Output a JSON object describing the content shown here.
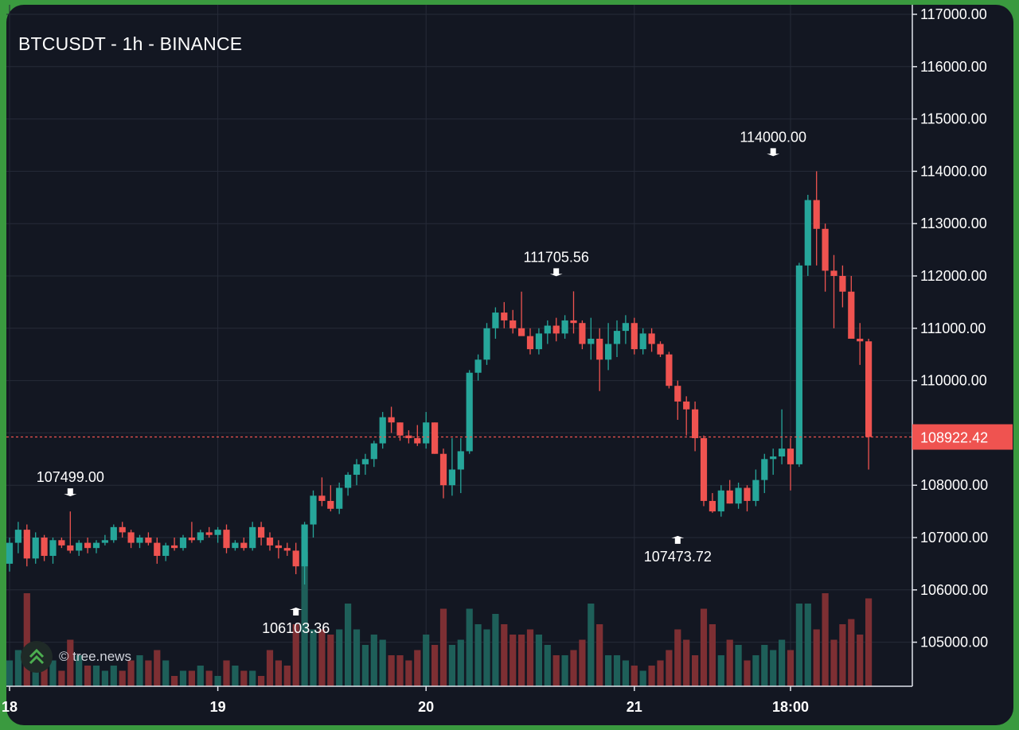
{
  "header": {
    "title": "BTCUSDT - 1h - BINANCE"
  },
  "watermark": {
    "text": "© tree.news",
    "icon": "double-chevron-up-icon"
  },
  "colors": {
    "background": "#131722",
    "grid": "#262b38",
    "up": "#26a69a",
    "down": "#ef5350",
    "up_volume": "#1e5f59",
    "down_volume": "#7d2f33",
    "axis_text": "#ffffff"
  },
  "chart_data": {
    "type": "candlestick",
    "title": "BTCUSDT - 1h - BINANCE",
    "y_axis": {
      "side": "right",
      "range": [
        104300,
        117000
      ],
      "ticks": [
        117000,
        116000,
        115000,
        114000,
        113000,
        112000,
        111000,
        110000,
        108000,
        107000,
        106000,
        105000
      ],
      "tick_labels": [
        "117000.00",
        "116000.00",
        "115000.00",
        "114000.00",
        "113000.00",
        "112000.00",
        "111000.00",
        "110000.00",
        "108000.00",
        "107000.00",
        "106000.00",
        "105000.00"
      ]
    },
    "x_axis": {
      "ticks": [
        0,
        24,
        48,
        72,
        90
      ],
      "tick_labels": [
        "18",
        "19",
        "20",
        "21",
        "18:00"
      ]
    },
    "grid": true,
    "current_price": {
      "value": 108922.42,
      "label": "108922.42"
    },
    "annotations": [
      {
        "type": "high",
        "index": 7,
        "value": 107499.0,
        "label": "107499.00"
      },
      {
        "type": "low",
        "index": 33,
        "value": 106103.36,
        "label": "106103.36"
      },
      {
        "type": "high",
        "index": 63,
        "value": 111705.56,
        "label": "111705.56"
      },
      {
        "type": "low",
        "index": 77,
        "value": 107473.72,
        "label": "107473.72"
      },
      {
        "type": "high",
        "index": 88,
        "value": 114000.0,
        "label": "114000.00"
      }
    ],
    "candles": [
      [
        106500,
        107000,
        106350,
        106900,
        0.25
      ],
      [
        106900,
        107300,
        106700,
        107150,
        0.35
      ],
      [
        107150,
        107250,
        106450,
        106600,
        0.9
      ],
      [
        106600,
        107100,
        106500,
        107000,
        0.4
      ],
      [
        107000,
        107050,
        106550,
        106650,
        0.3
      ],
      [
        106650,
        107000,
        106500,
        106950,
        0.25
      ],
      [
        106950,
        107000,
        106800,
        106850,
        0.15
      ],
      [
        106850,
        107499,
        106700,
        106750,
        0.45
      ],
      [
        106750,
        106950,
        106650,
        106900,
        0.3
      ],
      [
        106900,
        107000,
        106700,
        106800,
        0.2
      ],
      [
        106800,
        106950,
        106700,
        106900,
        0.2
      ],
      [
        106900,
        107050,
        106850,
        106950,
        0.15
      ],
      [
        106950,
        107250,
        106900,
        107200,
        0.2
      ],
      [
        107200,
        107300,
        107000,
        107100,
        0.15
      ],
      [
        107100,
        107150,
        106800,
        106900,
        0.25
      ],
      [
        106900,
        107050,
        106800,
        107000,
        0.3
      ],
      [
        107000,
        107100,
        106850,
        106900,
        0.25
      ],
      [
        106900,
        107000,
        106500,
        106650,
        0.35
      ],
      [
        106650,
        106900,
        106550,
        106850,
        0.25
      ],
      [
        106850,
        107000,
        106750,
        106800,
        0.1
      ],
      [
        106800,
        107050,
        106750,
        107000,
        0.15
      ],
      [
        107000,
        107300,
        106900,
        106950,
        0.15
      ],
      [
        106950,
        107150,
        106900,
        107100,
        0.2
      ],
      [
        107100,
        107200,
        107000,
        107050,
        0.15
      ],
      [
        107050,
        107200,
        106900,
        107150,
        0.1
      ],
      [
        107150,
        107250,
        106700,
        106800,
        0.25
      ],
      [
        106800,
        106950,
        106750,
        106900,
        0.2
      ],
      [
        106900,
        107000,
        106750,
        106800,
        0.15
      ],
      [
        106800,
        107300,
        106750,
        107200,
        0.15
      ],
      [
        107200,
        107300,
        106850,
        107000,
        0.1
      ],
      [
        107000,
        107100,
        106750,
        106850,
        0.35
      ],
      [
        106850,
        106950,
        106600,
        106800,
        0.25
      ],
      [
        106800,
        106900,
        106650,
        106750,
        0.2
      ],
      [
        106750,
        106900,
        106300,
        106450,
        0.6
      ],
      [
        106450,
        107300,
        106103.36,
        107250,
        1.3
      ],
      [
        107250,
        107900,
        107000,
        107800,
        0.55
      ],
      [
        107800,
        108150,
        107600,
        107700,
        0.55
      ],
      [
        107700,
        108000,
        107500,
        107550,
        0.5
      ],
      [
        107550,
        108050,
        107450,
        107950,
        0.55
      ],
      [
        107950,
        108250,
        107800,
        108200,
        0.8
      ],
      [
        108200,
        108500,
        108000,
        108400,
        0.55
      ],
      [
        108400,
        108600,
        108200,
        108500,
        0.4
      ],
      [
        108500,
        108850,
        108350,
        108800,
        0.5
      ],
      [
        108800,
        109400,
        108700,
        109300,
        0.45
      ],
      [
        109300,
        109500,
        109000,
        109200,
        0.3
      ],
      [
        109200,
        109200,
        108850,
        108950,
        0.3
      ],
      [
        108950,
        109050,
        108800,
        108900,
        0.25
      ],
      [
        108900,
        109150,
        108750,
        108800,
        0.35
      ],
      [
        108800,
        109400,
        108700,
        109200,
        0.5
      ],
      [
        109200,
        109200,
        108600,
        108600,
        0.4
      ],
      [
        108600,
        108700,
        107750,
        108000,
        0.75
      ],
      [
        108000,
        108900,
        107800,
        108300,
        0.4
      ],
      [
        108300,
        108900,
        107850,
        108650,
        0.45
      ],
      [
        108650,
        110200,
        108600,
        110150,
        0.75
      ],
      [
        110150,
        110500,
        110000,
        110400,
        0.6
      ],
      [
        110400,
        111100,
        110300,
        111000,
        0.55
      ],
      [
        111000,
        111400,
        110800,
        111300,
        0.7
      ],
      [
        111300,
        111500,
        111000,
        111150,
        0.6
      ],
      [
        111150,
        111350,
        110900,
        111000,
        0.5
      ],
      [
        111000,
        111700,
        110950,
        110850,
        0.5
      ],
      [
        110850,
        111000,
        110500,
        110600,
        0.55
      ],
      [
        110600,
        111000,
        110500,
        110900,
        0.5
      ],
      [
        110900,
        111150,
        110700,
        111050,
        0.4
      ],
      [
        111050,
        111200,
        110750,
        110900,
        0.3
      ],
      [
        110900,
        111250,
        110800,
        111150,
        0.3
      ],
      [
        111150,
        111705.56,
        110900,
        111100,
        0.35
      ],
      [
        111100,
        111150,
        110600,
        110700,
        0.45
      ],
      [
        110700,
        111200,
        110400,
        110800,
        0.8
      ],
      [
        110800,
        111000,
        109800,
        110400,
        0.6
      ],
      [
        110400,
        111100,
        110200,
        110700,
        0.3
      ],
      [
        110700,
        111150,
        110450,
        110950,
        0.3
      ],
      [
        110950,
        111250,
        110700,
        111100,
        0.25
      ],
      [
        111100,
        111200,
        110500,
        110600,
        0.2
      ],
      [
        110600,
        111000,
        110500,
        110900,
        0.15
      ],
      [
        110900,
        111000,
        110550,
        110700,
        0.2
      ],
      [
        110700,
        110750,
        110450,
        110500,
        0.25
      ],
      [
        110500,
        110550,
        109850,
        109900,
        0.35
      ],
      [
        109900,
        110000,
        109250,
        109600,
        0.55
      ],
      [
        109600,
        109700,
        108950,
        109450,
        0.45
      ],
      [
        109450,
        109600,
        108650,
        108900,
        0.3
      ],
      [
        108900,
        108950,
        107600,
        107700,
        0.75
      ],
      [
        107700,
        107850,
        107473.72,
        107500,
        0.6
      ],
      [
        107500,
        108000,
        107400,
        107900,
        0.3
      ],
      [
        107900,
        108100,
        107650,
        107650,
        0.45
      ],
      [
        107650,
        108050,
        107550,
        107950,
        0.4
      ],
      [
        107950,
        108000,
        107500,
        107700,
        0.25
      ],
      [
        107700,
        108300,
        107600,
        108100,
        0.3
      ],
      [
        108100,
        108600,
        107850,
        108500,
        0.4
      ],
      [
        108500,
        108700,
        108200,
        108550,
        0.35
      ],
      [
        108550,
        109450,
        108400,
        108700,
        0.45
      ],
      [
        108700,
        108900,
        107900,
        108400,
        0.35
      ],
      [
        108400,
        112250,
        108350,
        112200,
        0.8
      ],
      [
        112200,
        113550,
        112000,
        113450,
        0.8
      ],
      [
        113450,
        114000,
        112200,
        112900,
        0.55
      ],
      [
        112900,
        113000,
        111700,
        112100,
        0.9
      ],
      [
        112100,
        112400,
        111000,
        112000,
        0.45
      ],
      [
        112000,
        112200,
        111400,
        111700,
        0.6
      ],
      [
        111700,
        112000,
        110900,
        110800,
        0.65
      ],
      [
        110800,
        111100,
        110300,
        110750,
        0.5
      ],
      [
        110750,
        110800,
        108300,
        108922.42,
        0.85
      ]
    ]
  }
}
